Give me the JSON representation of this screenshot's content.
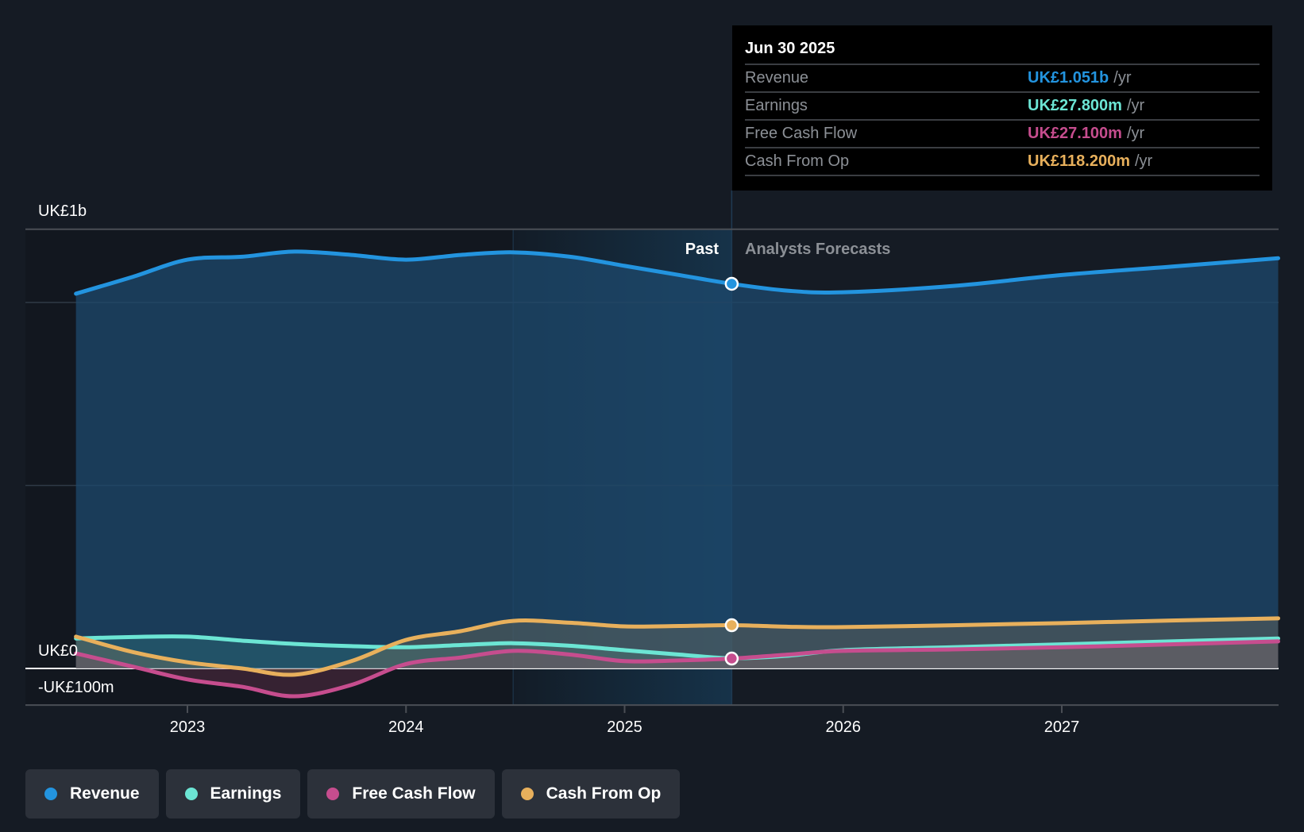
{
  "tooltip": {
    "date": "Jun 30 2025",
    "rows": [
      {
        "label": "Revenue",
        "value": "UK£1.051b",
        "unit": "/yr",
        "color": "#2394df"
      },
      {
        "label": "Earnings",
        "value": "UK£27.800m",
        "unit": "/yr",
        "color": "#6ce5d4"
      },
      {
        "label": "Free Cash Flow",
        "value": "UK£27.100m",
        "unit": "/yr",
        "color": "#c64d8e"
      },
      {
        "label": "Cash From Op",
        "value": "UK£118.200m",
        "unit": "/yr",
        "color": "#e8b05c"
      }
    ]
  },
  "legend": [
    {
      "label": "Revenue",
      "color": "#2394df"
    },
    {
      "label": "Earnings",
      "color": "#6ce5d4"
    },
    {
      "label": "Free Cash Flow",
      "color": "#c64d8e"
    },
    {
      "label": "Cash From Op",
      "color": "#e8b05c"
    }
  ],
  "chart_data": {
    "type": "area",
    "title": "",
    "xlabel": "",
    "ylabel": "",
    "currency": "UK£",
    "y_unit": "billions",
    "ylim": [
      -0.1,
      1.2
    ],
    "xlim": [
      2022.49,
      2027.99
    ],
    "y_tick_labels": [
      {
        "value": 1.2,
        "label": "UK£1b"
      },
      {
        "value": 0,
        "label": "UK£0"
      },
      {
        "value": -0.1,
        "label": "-UK£100m"
      }
    ],
    "gridlines": [
      1.2,
      1.0,
      0.5,
      0
    ],
    "x_ticks": [
      {
        "value": 2023,
        "label": "2023"
      },
      {
        "value": 2024,
        "label": "2024"
      },
      {
        "value": 2025,
        "label": "2025"
      },
      {
        "value": 2026,
        "label": "2026"
      },
      {
        "value": 2027,
        "label": "2027"
      }
    ],
    "past_end": 2025.49,
    "highlight_start": 2024.49,
    "zone_labels": {
      "past": "Past",
      "forecast": "Analysts Forecasts"
    },
    "series": [
      {
        "name": "Revenue",
        "color": "#2394df",
        "points": [
          [
            2022.49,
            1.024
          ],
          [
            2022.75,
            1.07
          ],
          [
            2023.0,
            1.117
          ],
          [
            2023.25,
            1.125
          ],
          [
            2023.49,
            1.139
          ],
          [
            2023.75,
            1.13
          ],
          [
            2024.0,
            1.117
          ],
          [
            2024.25,
            1.13
          ],
          [
            2024.49,
            1.137
          ],
          [
            2024.75,
            1.125
          ],
          [
            2025.0,
            1.1
          ],
          [
            2025.25,
            1.075
          ],
          [
            2025.49,
            1.051
          ],
          [
            2025.75,
            1.032
          ],
          [
            2026.0,
            1.028
          ],
          [
            2026.5,
            1.045
          ],
          [
            2027.0,
            1.075
          ],
          [
            2027.5,
            1.098
          ],
          [
            2027.99,
            1.121
          ]
        ]
      },
      {
        "name": "Earnings",
        "color": "#6ce5d4",
        "points": [
          [
            2022.49,
            0.082
          ],
          [
            2022.75,
            0.086
          ],
          [
            2023.0,
            0.087
          ],
          [
            2023.25,
            0.076
          ],
          [
            2023.49,
            0.067
          ],
          [
            2023.75,
            0.061
          ],
          [
            2024.0,
            0.058
          ],
          [
            2024.25,
            0.064
          ],
          [
            2024.49,
            0.069
          ],
          [
            2024.75,
            0.062
          ],
          [
            2025.0,
            0.05
          ],
          [
            2025.25,
            0.038
          ],
          [
            2025.49,
            0.0278
          ],
          [
            2025.75,
            0.035
          ],
          [
            2026.0,
            0.05
          ],
          [
            2026.5,
            0.058
          ],
          [
            2027.0,
            0.066
          ],
          [
            2027.5,
            0.074
          ],
          [
            2027.99,
            0.082
          ]
        ]
      },
      {
        "name": "Free Cash Flow",
        "color": "#c64d8e",
        "points": [
          [
            2022.49,
            0.041
          ],
          [
            2022.75,
            0.005
          ],
          [
            2023.0,
            -0.03
          ],
          [
            2023.25,
            -0.05
          ],
          [
            2023.49,
            -0.076
          ],
          [
            2023.75,
            -0.045
          ],
          [
            2024.0,
            0.012
          ],
          [
            2024.25,
            0.03
          ],
          [
            2024.49,
            0.048
          ],
          [
            2024.75,
            0.038
          ],
          [
            2025.0,
            0.02
          ],
          [
            2025.25,
            0.022
          ],
          [
            2025.49,
            0.0271
          ],
          [
            2025.75,
            0.038
          ],
          [
            2026.0,
            0.048
          ],
          [
            2026.5,
            0.052
          ],
          [
            2027.0,
            0.058
          ],
          [
            2027.5,
            0.066
          ],
          [
            2027.99,
            0.074
          ]
        ]
      },
      {
        "name": "Cash From Op",
        "color": "#e8b05c",
        "points": [
          [
            2022.49,
            0.087
          ],
          [
            2022.75,
            0.045
          ],
          [
            2023.0,
            0.017
          ],
          [
            2023.25,
            0.0
          ],
          [
            2023.49,
            -0.017
          ],
          [
            2023.75,
            0.02
          ],
          [
            2024.0,
            0.078
          ],
          [
            2024.25,
            0.102
          ],
          [
            2024.49,
            0.13
          ],
          [
            2024.75,
            0.125
          ],
          [
            2025.0,
            0.115
          ],
          [
            2025.25,
            0.116
          ],
          [
            2025.49,
            0.1182
          ],
          [
            2025.75,
            0.114
          ],
          [
            2026.0,
            0.113
          ],
          [
            2026.5,
            0.118
          ],
          [
            2027.0,
            0.124
          ],
          [
            2027.5,
            0.131
          ],
          [
            2027.99,
            0.137
          ]
        ]
      }
    ],
    "markers_at": 2025.49,
    "grid": true,
    "legend_position": "bottom-left"
  }
}
